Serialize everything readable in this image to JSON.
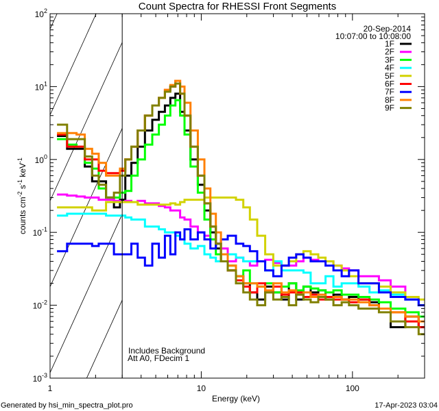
{
  "chart_data": {
    "type": "line",
    "title": "Count Spectra for RHESSI Front Segments",
    "xlabel": "Energy (keV)",
    "ylabel": {
      "base": "counts cm",
      "parts": [
        [
          "counts cm",
          ""
        ],
        [
          "-2",
          "sup"
        ],
        [
          " s",
          ""
        ],
        [
          "-1",
          "sup"
        ],
        [
          " keV",
          ""
        ],
        [
          "-1",
          "sup"
        ]
      ]
    },
    "xscale": "log",
    "yscale": "log",
    "xlim": [
      1,
      300
    ],
    "ylim": [
      0.001,
      100
    ],
    "x_ticks": [
      {
        "value": 1,
        "label": "1"
      },
      {
        "value": 10,
        "label": "10"
      },
      {
        "value": 100,
        "label": "100"
      }
    ],
    "y_ticks": [
      {
        "value": 0.001,
        "base": "10",
        "exp": "-3"
      },
      {
        "value": 0.01,
        "base": "10",
        "exp": "-2"
      },
      {
        "value": 0.1,
        "base": "10",
        "exp": "-1"
      },
      {
        "value": 1,
        "base": "10",
        "exp": "0"
      },
      {
        "value": 10,
        "base": "10",
        "exp": "1"
      },
      {
        "value": 100,
        "base": "10",
        "exp": "2"
      }
    ],
    "hatched_region_keV": [
      1,
      3
    ],
    "legend": {
      "placement": "top-right",
      "date": "20-Sep-2014",
      "time_range": "10:07:00 to 10:08:00"
    },
    "annotations": [
      "Includes Background",
      "Att A0, FDecim 1"
    ],
    "energy_keV": [
      1.2,
      1.4,
      1.6,
      1.8,
      2.0,
      2.2,
      2.5,
      2.8,
      3.0,
      3.3,
      3.6,
      4.0,
      4.5,
      5.0,
      5.5,
      6.0,
      6.5,
      7.0,
      7.5,
      8.0,
      9,
      10,
      11,
      12,
      13,
      14,
      16,
      18,
      20,
      22,
      25,
      28,
      32,
      36,
      40,
      45,
      50,
      56,
      63,
      70,
      80,
      90,
      100,
      120,
      140,
      160,
      200,
      250,
      300
    ],
    "series": [
      {
        "name": "1F",
        "color": "#000000",
        "values": [
          2.1,
          1.4,
          1.4,
          0.8,
          0.5,
          0.5,
          0.3,
          0.22,
          0.28,
          0.6,
          0.9,
          1.5,
          2.5,
          3.5,
          4.5,
          5.5,
          7,
          8,
          4.5,
          2.5,
          1.0,
          0.45,
          0.2,
          0.1,
          0.06,
          0.04,
          0.03,
          0.025,
          0.02,
          0.015,
          0.012,
          0.018,
          0.015,
          0.012,
          0.02,
          0.012,
          0.018,
          0.015,
          0.016,
          0.012,
          0.014,
          0.012,
          0.013,
          0.012,
          0.011,
          0.009,
          0.005,
          0.007,
          0.005
        ]
      },
      {
        "name": "2F",
        "color": "#ff00ff",
        "values": [
          0.33,
          0.32,
          0.31,
          0.3,
          0.3,
          0.28,
          0.28,
          0.27,
          0.26,
          0.27,
          0.26,
          0.27,
          0.25,
          0.25,
          0.23,
          0.22,
          0.2,
          0.2,
          0.16,
          0.15,
          0.12,
          0.1,
          0.09,
          0.08,
          0.07,
          0.06,
          0.04,
          0.045,
          0.04,
          0.035,
          0.04,
          0.042,
          0.038,
          0.035,
          0.035,
          0.04,
          0.045,
          0.042,
          0.04,
          0.04,
          0.035,
          0.032,
          0.03,
          0.025,
          0.025,
          0.022,
          0.018,
          0.012,
          0.01
        ]
      },
      {
        "name": "3F",
        "color": "#00ff00",
        "values": [
          1.9,
          1.6,
          1.5,
          0.9,
          0.75,
          0.4,
          0.3,
          0.3,
          0.35,
          0.37,
          0.6,
          1.0,
          1.6,
          2.2,
          3,
          4,
          5.5,
          6.5,
          4,
          2.2,
          0.8,
          0.35,
          0.15,
          0.08,
          0.05,
          0.04,
          0.035,
          0.025,
          0.03,
          0.02,
          0.018,
          0.02,
          0.015,
          0.018,
          0.02,
          0.016,
          0.018,
          0.017,
          0.016,
          0.015,
          0.016,
          0.014,
          0.014,
          0.013,
          0.012,
          0.011,
          0.009,
          0.008,
          0.007
        ]
      },
      {
        "name": "4F",
        "color": "#00ffff",
        "values": [
          0.17,
          0.18,
          0.18,
          0.18,
          0.18,
          0.18,
          0.17,
          0.17,
          0.17,
          0.16,
          0.15,
          0.15,
          0.12,
          0.12,
          0.11,
          0.1,
          0.1,
          0.09,
          0.08,
          0.07,
          0.06,
          0.065,
          0.05,
          0.045,
          0.04,
          0.04,
          0.05,
          0.045,
          0.04,
          0.04,
          0.04,
          0.03,
          0.04,
          0.03,
          0.03,
          0.03,
          0.028,
          0.02,
          0.02,
          0.025,
          0.018,
          0.02,
          0.02,
          0.018,
          0.015,
          0.016,
          0.014,
          0.012,
          0.01
        ]
      },
      {
        "name": "5F",
        "color": "#d2d200",
        "values": [
          0.22,
          0.22,
          0.22,
          0.22,
          0.2,
          0.2,
          0.26,
          0.26,
          0.26,
          0.26,
          0.26,
          0.24,
          0.24,
          0.24,
          0.24,
          0.24,
          0.25,
          0.24,
          0.26,
          0.28,
          0.28,
          0.28,
          0.3,
          0.3,
          0.3,
          0.3,
          0.3,
          0.28,
          0.22,
          0.15,
          0.09,
          0.05,
          0.035,
          0.035,
          0.04,
          0.05,
          0.055,
          0.05,
          0.045,
          0.04,
          0.035,
          0.03,
          0.025,
          0.02,
          0.02,
          0.018,
          0.015,
          0.013,
          0.012
        ]
      },
      {
        "name": "6F",
        "color": "#ff0000",
        "values": [
          2.2,
          1.5,
          1.5,
          1.0,
          1.0,
          0.7,
          0.65,
          0.65,
          0.7,
          1.0,
          1.5,
          2.5,
          4,
          5.5,
          7,
          9,
          10,
          12,
          8,
          4,
          1.5,
          0.6,
          0.25,
          0.12,
          0.07,
          0.04,
          0.03,
          0.022,
          0.018,
          0.015,
          0.02,
          0.015,
          0.018,
          0.014,
          0.015,
          0.015,
          0.013,
          0.014,
          0.012,
          0.013,
          0.012,
          0.012,
          0.011,
          0.012,
          0.01,
          0.009,
          0.008,
          0.006,
          0.005
        ]
      },
      {
        "name": "7F",
        "color": "#0000ff",
        "values": [
          0.055,
          0.07,
          0.07,
          0.07,
          0.065,
          0.07,
          0.07,
          0.05,
          0.05,
          0.05,
          0.07,
          0.045,
          0.035,
          0.07,
          0.045,
          0.09,
          0.05,
          0.1,
          0.08,
          0.11,
          0.08,
          0.1,
          0.08,
          0.06,
          0.07,
          0.08,
          0.09,
          0.07,
          0.065,
          0.055,
          0.04,
          0.03,
          0.025,
          0.035,
          0.045,
          0.05,
          0.045,
          0.04,
          0.04,
          0.035,
          0.03,
          0.025,
          0.03,
          0.02,
          0.02,
          0.015,
          0.013,
          0.012,
          0.01
        ]
      },
      {
        "name": "8F",
        "color": "#ff8000",
        "values": [
          2.3,
          2.3,
          2.2,
          1.4,
          1.2,
          0.9,
          0.6,
          0.6,
          0.75,
          1.0,
          1.5,
          2.5,
          4,
          5.5,
          7,
          9,
          10.5,
          12,
          10,
          6,
          2.5,
          1.0,
          0.4,
          0.18,
          0.1,
          0.05,
          0.035,
          0.025,
          0.02,
          0.02,
          0.018,
          0.016,
          0.02,
          0.015,
          0.016,
          0.014,
          0.015,
          0.013,
          0.014,
          0.012,
          0.013,
          0.012,
          0.012,
          0.011,
          0.01,
          0.009,
          0.008,
          0.007,
          0.006
        ]
      },
      {
        "name": "9F",
        "color": "#808000",
        "values": [
          3.0,
          1.9,
          1.9,
          1.1,
          0.6,
          0.45,
          0.3,
          0.35,
          0.6,
          1.0,
          1.5,
          2.5,
          4,
          5.5,
          7,
          8.5,
          10,
          11,
          8,
          4,
          1.5,
          0.6,
          0.25,
          0.12,
          0.07,
          0.04,
          0.03,
          0.02,
          0.015,
          0.012,
          0.01,
          0.015,
          0.012,
          0.013,
          0.01,
          0.014,
          0.012,
          0.011,
          0.013,
          0.012,
          0.01,
          0.011,
          0.01,
          0.009,
          0.009,
          0.008,
          0.006,
          0.005,
          0.004
        ]
      }
    ]
  },
  "footer": {
    "generated_by": "Generated by hsi_min_spectra_plot.pro",
    "timestamp": "17-Apr-2023 03:04"
  }
}
